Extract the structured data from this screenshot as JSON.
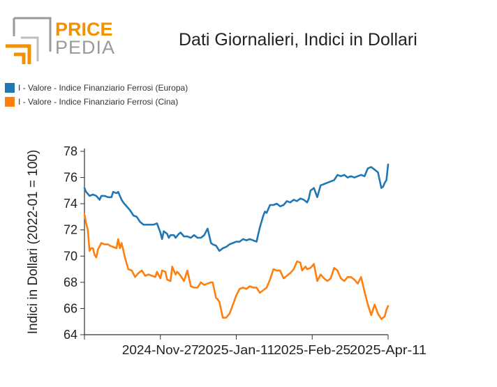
{
  "logo": {
    "word_top": "PRICE",
    "word_bottom": "PEDIA"
  },
  "chart_data": {
    "type": "line",
    "title": "Dati Giornalieri, Indici in Dollari",
    "ylabel": "Indici in Dollari (2022-01 = 100)",
    "xlabel": "",
    "ylim": [
      64,
      78
    ],
    "yticks": [
      64,
      66,
      68,
      70,
      72,
      74,
      76,
      78
    ],
    "x_tick_labels": [
      "2024-Nov-27",
      "2025-Jan-11",
      "2025-Feb-25",
      "2025-Apr-11"
    ],
    "x_start": "2024-Oct-13",
    "legend_position": "top-left",
    "series": [
      {
        "name": "I - Valore - Indice Finanziario Ferrosi (Europa)",
        "color": "#1f77b4",
        "x": [
          "2024-10-13",
          "2024-10-14",
          "2024-10-16",
          "2024-10-18",
          "2024-10-20",
          "2024-10-22",
          "2024-10-23",
          "2024-10-25",
          "2024-10-27",
          "2024-10-29",
          "2024-10-30",
          "2024-11-01",
          "2024-11-02",
          "2024-11-04",
          "2024-11-05",
          "2024-11-07",
          "2024-11-09",
          "2024-11-11",
          "2024-11-13",
          "2024-11-15",
          "2024-11-17",
          "2024-11-19",
          "2024-11-21",
          "2024-11-23",
          "2024-11-25",
          "2024-11-27",
          "2024-11-28",
          "2024-11-29",
          "2024-12-01",
          "2024-12-02",
          "2024-12-03",
          "2024-12-05",
          "2024-12-06",
          "2024-12-08",
          "2024-12-09",
          "2024-12-11",
          "2024-12-13",
          "2024-12-15",
          "2024-12-17",
          "2024-12-19",
          "2024-12-21",
          "2024-12-23",
          "2024-12-25",
          "2024-12-27",
          "2024-12-28",
          "2024-12-30",
          "2025-01-01",
          "2025-01-03",
          "2025-01-05",
          "2025-01-07",
          "2025-01-09",
          "2025-01-11",
          "2025-01-13",
          "2025-01-15",
          "2025-01-17",
          "2025-01-19",
          "2025-01-21",
          "2025-01-23",
          "2025-01-25",
          "2025-01-27",
          "2025-01-28",
          "2025-01-29",
          "2025-01-31",
          "2025-02-02",
          "2025-02-04",
          "2025-02-06",
          "2025-02-08",
          "2025-02-10",
          "2025-02-12",
          "2025-02-14",
          "2025-02-16",
          "2025-02-18",
          "2025-02-20",
          "2025-02-22",
          "2025-02-23",
          "2025-02-24",
          "2025-02-26",
          "2025-02-28",
          "2025-03-02",
          "2025-03-04",
          "2025-03-06",
          "2025-03-08",
          "2025-03-10",
          "2025-03-12",
          "2025-03-14",
          "2025-03-16",
          "2025-03-18",
          "2025-03-20",
          "2025-03-22",
          "2025-03-24",
          "2025-03-26",
          "2025-03-28",
          "2025-03-30",
          "2025-04-01",
          "2025-04-03",
          "2025-04-05",
          "2025-04-07",
          "2025-04-08",
          "2025-04-09",
          "2025-04-10",
          "2025-04-11"
        ],
        "values": [
          75.2,
          74.9,
          74.6,
          74.7,
          74.6,
          74.3,
          74.6,
          74.6,
          74.5,
          74.5,
          74.9,
          74.8,
          74.9,
          74.3,
          74.1,
          73.8,
          73.5,
          73.1,
          73.0,
          72.6,
          72.4,
          72.4,
          72.4,
          72.4,
          72.5,
          71.8,
          71.3,
          71.9,
          71.7,
          71.4,
          71.6,
          71.6,
          71.4,
          71.7,
          71.8,
          71.5,
          71.5,
          71.4,
          71.6,
          71.4,
          71.4,
          71.6,
          72.1,
          71.0,
          70.9,
          70.8,
          70.4,
          70.6,
          70.7,
          70.9,
          71.0,
          71.1,
          71.1,
          71.3,
          71.2,
          71.3,
          71.2,
          71.1,
          72.2,
          73.1,
          73.4,
          73.3,
          73.9,
          73.9,
          74.0,
          73.8,
          73.9,
          74.2,
          74.1,
          74.3,
          74.2,
          74.4,
          74.3,
          74.1,
          74.4,
          75.0,
          75.2,
          74.5,
          75.4,
          75.5,
          75.6,
          75.7,
          75.8,
          76.2,
          76.1,
          76.2,
          76.0,
          76.1,
          76.0,
          76.1,
          76.2,
          76.1,
          76.7,
          76.8,
          76.6,
          76.4,
          75.2,
          75.3,
          75.6,
          75.8,
          77.0
        ]
      },
      {
        "name": "I - Valore - Indice Finanziario Ferrosi (Cina)",
        "color": "#ff7f0e",
        "x": [
          "2024-10-13",
          "2024-10-14",
          "2024-10-15",
          "2024-10-16",
          "2024-10-17",
          "2024-10-18",
          "2024-10-19",
          "2024-10-20",
          "2024-10-21",
          "2024-10-23",
          "2024-10-25",
          "2024-10-27",
          "2024-10-28",
          "2024-10-30",
          "2024-11-01",
          "2024-11-02",
          "2024-11-03",
          "2024-11-04",
          "2024-11-06",
          "2024-11-08",
          "2024-11-10",
          "2024-11-12",
          "2024-11-14",
          "2024-11-16",
          "2024-11-18",
          "2024-11-20",
          "2024-11-22",
          "2024-11-24",
          "2024-11-25",
          "2024-11-27",
          "2024-11-28",
          "2024-11-30",
          "2024-12-01",
          "2024-12-03",
          "2024-12-04",
          "2024-12-06",
          "2024-12-07",
          "2024-12-09",
          "2024-12-11",
          "2024-12-13",
          "2024-12-15",
          "2024-12-17",
          "2024-12-19",
          "2024-12-21",
          "2024-12-23",
          "2024-12-25",
          "2024-12-27",
          "2024-12-28",
          "2024-12-30",
          "2024-12-31",
          "2025-01-01",
          "2025-01-03",
          "2025-01-05",
          "2025-01-07",
          "2025-01-09",
          "2025-01-11",
          "2025-01-13",
          "2025-01-15",
          "2025-01-17",
          "2025-01-19",
          "2025-01-21",
          "2025-01-23",
          "2025-01-25",
          "2025-01-27",
          "2025-01-29",
          "2025-01-31",
          "2025-02-02",
          "2025-02-04",
          "2025-02-06",
          "2025-02-08",
          "2025-02-10",
          "2025-02-12",
          "2025-02-14",
          "2025-02-16",
          "2025-02-18",
          "2025-02-19",
          "2025-02-21",
          "2025-02-22",
          "2025-02-24",
          "2025-02-26",
          "2025-02-28",
          "2025-03-02",
          "2025-03-04",
          "2025-03-06",
          "2025-03-08",
          "2025-03-10",
          "2025-03-12",
          "2025-03-14",
          "2025-03-16",
          "2025-03-18",
          "2025-03-20",
          "2025-03-22",
          "2025-03-24",
          "2025-03-26",
          "2025-03-28",
          "2025-03-30",
          "2025-04-01",
          "2025-04-03",
          "2025-04-05",
          "2025-04-07",
          "2025-04-09",
          "2025-04-10",
          "2025-04-11"
        ],
        "values": [
          73.2,
          72.5,
          72.0,
          70.4,
          70.6,
          70.6,
          70.1,
          69.9,
          70.5,
          71.0,
          70.9,
          70.9,
          70.8,
          70.7,
          70.6,
          71.3,
          70.6,
          71.0,
          69.9,
          69.0,
          68.9,
          68.4,
          68.7,
          68.9,
          68.5,
          68.6,
          68.5,
          68.4,
          68.8,
          68.3,
          68.9,
          68.8,
          68.2,
          68.1,
          69.2,
          68.6,
          68.8,
          68.5,
          68.1,
          68.9,
          67.7,
          67.6,
          67.6,
          68.0,
          67.8,
          67.9,
          68.0,
          68.0,
          66.8,
          66.7,
          66.5,
          65.3,
          65.3,
          65.6,
          66.3,
          67.0,
          67.5,
          67.6,
          67.5,
          67.7,
          67.6,
          67.6,
          67.2,
          67.4,
          67.6,
          68.2,
          69.0,
          68.9,
          68.9,
          68.3,
          68.5,
          68.7,
          69.0,
          69.6,
          69.5,
          68.9,
          69.2,
          69.0,
          69.1,
          69.4,
          68.1,
          68.6,
          68.3,
          68.1,
          68.3,
          69.1,
          68.9,
          68.3,
          68.1,
          68.4,
          68.4,
          68.2,
          67.9,
          68.4,
          67.3,
          66.3,
          65.5,
          66.3,
          65.6,
          65.2,
          65.4,
          65.9,
          66.2
        ]
      }
    ]
  }
}
